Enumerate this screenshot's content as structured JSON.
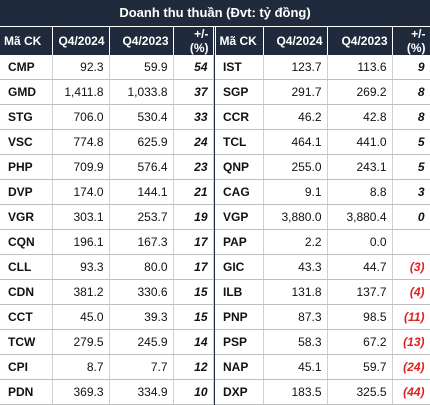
{
  "title": "Doanh thu thuần (Đvt: tỷ đồng)",
  "headers": {
    "left": [
      "Mã CK",
      "Q4/2024",
      "Q4/2023",
      "+/- (%)"
    ],
    "right": [
      "Mã CK",
      "Q4/2024",
      "Q4/2023",
      "+/- (%)"
    ]
  },
  "left_rows": [
    {
      "code": "CMP",
      "q4_2024": "92.3",
      "q4_2023": "59.9",
      "change": "54"
    },
    {
      "code": "GMD",
      "q4_2024": "1,411.8",
      "q4_2023": "1,033.8",
      "change": "37"
    },
    {
      "code": "STG",
      "q4_2024": "706.0",
      "q4_2023": "530.4",
      "change": "33"
    },
    {
      "code": "VSC",
      "q4_2024": "774.8",
      "q4_2023": "625.9",
      "change": "24"
    },
    {
      "code": "PHP",
      "q4_2024": "709.9",
      "q4_2023": "576.4",
      "change": "23"
    },
    {
      "code": "DVP",
      "q4_2024": "174.0",
      "q4_2023": "144.1",
      "change": "21"
    },
    {
      "code": "VGR",
      "q4_2024": "303.1",
      "q4_2023": "253.7",
      "change": "19"
    },
    {
      "code": "CQN",
      "q4_2024": "196.1",
      "q4_2023": "167.3",
      "change": "17"
    },
    {
      "code": "CLL",
      "q4_2024": "93.3",
      "q4_2023": "80.0",
      "change": "17"
    },
    {
      "code": "CDN",
      "q4_2024": "381.2",
      "q4_2023": "330.6",
      "change": "15"
    },
    {
      "code": "CCT",
      "q4_2024": "45.0",
      "q4_2023": "39.3",
      "change": "15"
    },
    {
      "code": "TCW",
      "q4_2024": "279.5",
      "q4_2023": "245.9",
      "change": "14"
    },
    {
      "code": "CPI",
      "q4_2024": "8.7",
      "q4_2023": "7.7",
      "change": "12"
    },
    {
      "code": "PDN",
      "q4_2024": "369.3",
      "q4_2023": "334.9",
      "change": "10"
    }
  ],
  "right_rows": [
    {
      "code": "IST",
      "q4_2024": "123.7",
      "q4_2023": "113.6",
      "change": "9",
      "negative": false
    },
    {
      "code": "SGP",
      "q4_2024": "291.7",
      "q4_2023": "269.2",
      "change": "8",
      "negative": false
    },
    {
      "code": "CCR",
      "q4_2024": "46.2",
      "q4_2023": "42.8",
      "change": "8",
      "negative": false
    },
    {
      "code": "TCL",
      "q4_2024": "464.1",
      "q4_2023": "441.0",
      "change": "5",
      "negative": false
    },
    {
      "code": "QNP",
      "q4_2024": "255.0",
      "q4_2023": "243.1",
      "change": "5",
      "negative": false
    },
    {
      "code": "CAG",
      "q4_2024": "9.1",
      "q4_2023": "8.8",
      "change": "3",
      "negative": false
    },
    {
      "code": "VGP",
      "q4_2024": "3,880.0",
      "q4_2023": "3,880.4",
      "change": "0",
      "negative": false
    },
    {
      "code": "PAP",
      "q4_2024": "2.2",
      "q4_2023": "0.0",
      "change": "",
      "negative": false
    },
    {
      "code": "GIC",
      "q4_2024": "43.3",
      "q4_2023": "44.7",
      "change": "(3)",
      "negative": true
    },
    {
      "code": "ILB",
      "q4_2024": "131.8",
      "q4_2023": "137.7",
      "change": "(4)",
      "negative": true
    },
    {
      "code": "PNP",
      "q4_2024": "87.3",
      "q4_2023": "98.5",
      "change": "(11)",
      "negative": true
    },
    {
      "code": "PSP",
      "q4_2024": "58.3",
      "q4_2023": "67.2",
      "change": "(13)",
      "negative": true
    },
    {
      "code": "NAP",
      "q4_2024": "45.1",
      "q4_2023": "59.7",
      "change": "(24)",
      "negative": true
    },
    {
      "code": "DXP",
      "q4_2024": "183.5",
      "q4_2023": "325.5",
      "change": "(44)",
      "negative": true
    }
  ],
  "colors": {
    "header_bg": "#1f2a3c",
    "header_text": "#ffffff",
    "negative": "#e02020"
  }
}
